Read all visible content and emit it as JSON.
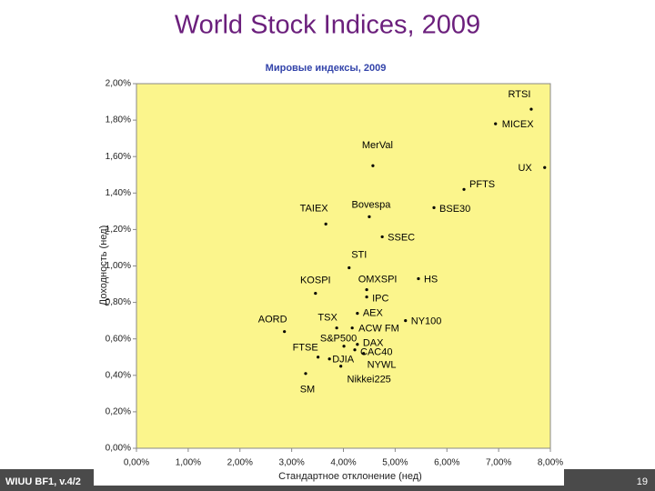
{
  "slide_title": "World Stock Indices, 2009",
  "footer": {
    "left": "WIUU BF1, v.4/2",
    "page": "19"
  },
  "chart_data": {
    "type": "scatter",
    "title": "Мировые индексы, 2009",
    "xlabel": "Стандартное отклонение (нед)",
    "ylabel": "Доходность (нед)",
    "color": "#000000",
    "grid": false,
    "labels": [
      "RTSI",
      "MICEX",
      "UX",
      "PFTS",
      "MerVal",
      "TAIEX",
      "Bovespa",
      "BSE30",
      "SSEC",
      "STI",
      "KOSPI",
      "OMXSPI",
      "HS",
      "IPC",
      "AEX",
      "NY100",
      "AORD",
      "TSX",
      "ACW FM",
      "S&P500",
      "DAX",
      "FTSE",
      "CAC40",
      "DJIA",
      "NYWL",
      "Nikkei225",
      "SM"
    ],
    "x": [
      7.63,
      6.94,
      7.89,
      6.33,
      4.57,
      3.66,
      4.5,
      5.75,
      4.75,
      4.11,
      3.46,
      4.45,
      5.45,
      4.45,
      4.27,
      5.2,
      2.86,
      3.87,
      4.17,
      4.01,
      4.27,
      3.51,
      4.22,
      3.73,
      4.39,
      3.95,
      3.27
    ],
    "values": [
      1.86,
      1.78,
      1.54,
      1.42,
      1.55,
      1.23,
      1.27,
      1.32,
      1.16,
      0.99,
      0.85,
      0.87,
      0.93,
      0.83,
      0.74,
      0.7,
      0.64,
      0.66,
      0.66,
      0.56,
      0.57,
      0.5,
      0.54,
      0.49,
      0.52,
      0.45,
      0.41
    ],
    "xlim": [
      0,
      8
    ],
    "ylim": [
      0,
      2
    ],
    "xticks": [
      {
        "value": 0,
        "label": "0,00%"
      },
      {
        "value": 1,
        "label": "1,00%"
      },
      {
        "value": 2,
        "label": "2,00%"
      },
      {
        "value": 3,
        "label": "3,00%"
      },
      {
        "value": 4,
        "label": "4,00%"
      },
      {
        "value": 5,
        "label": "5,00%"
      },
      {
        "value": 6,
        "label": "6,00%"
      },
      {
        "value": 7,
        "label": "7,00%"
      },
      {
        "value": 8,
        "label": "8,00%"
      }
    ],
    "yticks": [
      {
        "value": 0,
        "label": "0,00%"
      },
      {
        "value": 0.2,
        "label": "0,20%"
      },
      {
        "value": 0.4,
        "label": "0,40%"
      },
      {
        "value": 0.6,
        "label": "0,60%"
      },
      {
        "value": 0.8,
        "label": "0,80%"
      },
      {
        "value": 1,
        "label": "1,00%"
      },
      {
        "value": 1.2,
        "label": "1,20%"
      },
      {
        "value": 1.4,
        "label": "1,40%"
      },
      {
        "value": 1.6,
        "label": "1,60%"
      },
      {
        "value": 1.8,
        "label": "1,80%"
      },
      {
        "value": 2,
        "label": "2,00%"
      }
    ]
  }
}
